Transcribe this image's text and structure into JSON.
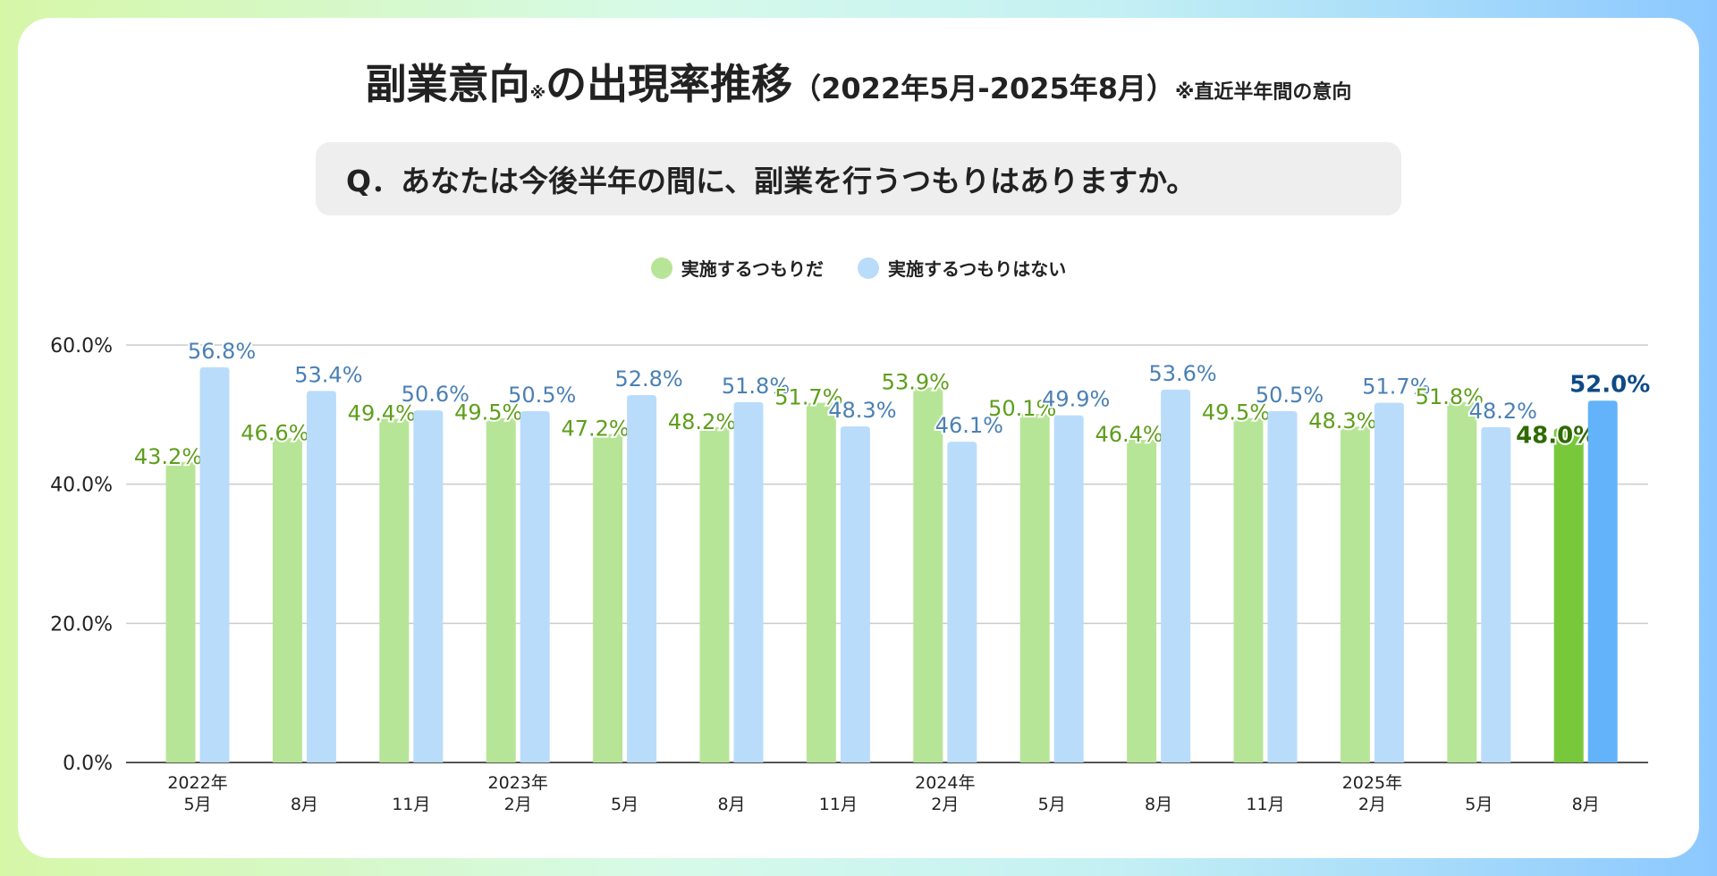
{
  "header": {
    "title_main": "副業意向",
    "title_mark": "※",
    "title_main2": "の出現率推移",
    "title_range": "（2022年5月-2025年8月）",
    "title_note": "※直近半年間の意向"
  },
  "question": "Q．あなたは今後半年の間に、副業を行うつもりはありますか。",
  "chart_data": {
    "type": "bar",
    "title": "副業意向※の出現率推移（2022年5月-2025年8月）",
    "legend_position": "top-center",
    "categories": [
      [
        "2022年",
        "5月"
      ],
      [
        "",
        "8月"
      ],
      [
        "",
        "11月"
      ],
      [
        "2023年",
        "2月"
      ],
      [
        "",
        "5月"
      ],
      [
        "",
        "8月"
      ],
      [
        "",
        "11月"
      ],
      [
        "2024年",
        "2月"
      ],
      [
        "",
        "5月"
      ],
      [
        "",
        "8月"
      ],
      [
        "",
        "11月"
      ],
      [
        "2025年",
        "2月"
      ],
      [
        "",
        "5月"
      ],
      [
        "",
        "8月"
      ]
    ],
    "series": [
      {
        "name": "実施するつもりだ",
        "color": "#b7e597",
        "highlight_color": "#78c83c",
        "label_color": "#5e9e1c",
        "highlight_label_color": "#2f6a00",
        "values": [
          43.2,
          46.6,
          49.4,
          49.5,
          47.2,
          48.2,
          51.7,
          53.9,
          50.1,
          46.4,
          49.5,
          48.3,
          51.8,
          48.0
        ]
      },
      {
        "name": "実施するつもりはない",
        "color": "#b9dcfb",
        "highlight_color": "#62b3fa",
        "label_color": "#4a80b4",
        "highlight_label_color": "#0d4a86",
        "values": [
          56.8,
          53.4,
          50.6,
          50.5,
          52.8,
          51.8,
          48.3,
          46.1,
          49.9,
          53.6,
          50.5,
          51.7,
          48.2,
          52.0
        ]
      }
    ],
    "yticks": [
      "0.0%",
      "20.0%",
      "40.0%",
      "60.0%"
    ],
    "ylim": [
      0,
      60
    ],
    "grid": true
  }
}
